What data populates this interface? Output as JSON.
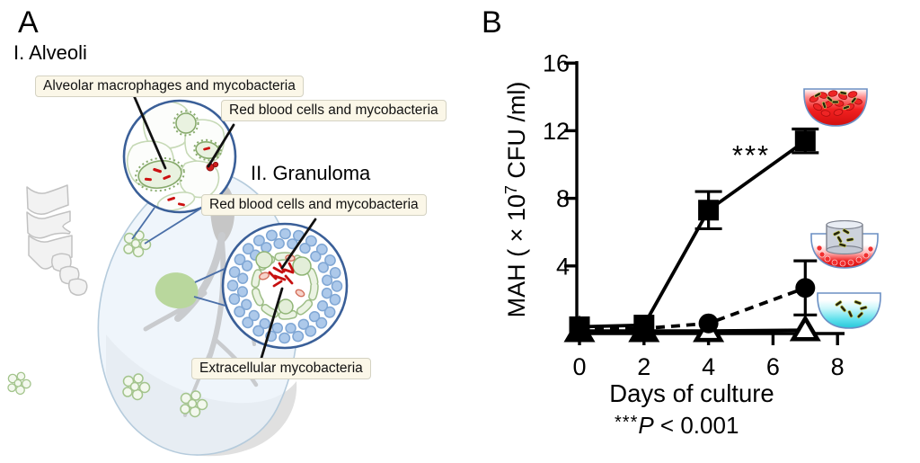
{
  "panel_a": {
    "label": "A",
    "alveoli_title": "I. Alveoli",
    "granuloma_title": "II. Granuloma",
    "callouts": {
      "alveolar_macrophages": "Alveolar macrophages and mycobacteria",
      "rbc_alveoli": "Red blood cells and mycobacteria",
      "rbc_granuloma": "Red blood cells and mycobacteria",
      "extracellular": "Extracellular mycobacteria"
    }
  },
  "panel_b": {
    "label": "B",
    "footnote": {
      "stars": "***",
      "p": "P",
      "rest": " < 0.001"
    }
  },
  "chart_data": {
    "type": "line",
    "x": [
      0,
      2,
      4,
      7
    ],
    "xticks": [
      0,
      2,
      4,
      6,
      8
    ],
    "yticks": [
      4,
      8,
      12,
      16
    ],
    "xlim": [
      0,
      8.2
    ],
    "ylim": [
      0,
      16
    ],
    "xlabel": "Days of culture",
    "ylabel": "MAH ( × 10⁷ CFU /ml)",
    "ylabel_parts": {
      "prefix": "MAH ( × 10",
      "sup": "7",
      "suffix": " CFU /ml)"
    },
    "grid": false,
    "legend_position": "icon pictograms right of curves",
    "series": [
      {
        "name": "squares — red blood cells + mycobacteria co-culture dish",
        "marker": "square",
        "line": "solid",
        "values": [
          0.4,
          0.5,
          7.3,
          11.4
        ],
        "errors": [
          0,
          0,
          1.1,
          0.7
        ],
        "marker_fill": [
          "black",
          "black",
          "black",
          "black"
        ],
        "icon": "dish-red-blood-cells-and-mycobacteria"
      },
      {
        "name": "circles — transwell-insert separated co-culture dish",
        "marker": "circle",
        "line": "dashed",
        "values": [
          0.25,
          0.3,
          0.6,
          2.7
        ],
        "errors": [
          0,
          0,
          0,
          1.6
        ],
        "marker_fill": [
          "black",
          "black",
          "black",
          "black"
        ],
        "icon": "dish-transwell-insert-mycobacteria"
      },
      {
        "name": "triangles — medium only dish",
        "marker": "triangle",
        "line": "solid",
        "values": [
          0.15,
          0.15,
          0.15,
          0.2
        ],
        "errors": [
          0,
          0,
          0,
          0
        ],
        "marker_fill": [
          "black",
          "black",
          "white",
          "white"
        ],
        "icon": "dish-medium-only-mycobacteria"
      }
    ],
    "annotations": {
      "significance": "***",
      "footnote": "***P < 0.001"
    }
  },
  "colors": {
    "axis": "#000000",
    "inset_circle_stroke": "#3a5f98",
    "callout_box_bg": "#fbf7e8",
    "callout_box_border": "#d4d2c2",
    "lung_fill": "#eaf2f9",
    "lung_stroke": "#b5cbdc",
    "lesion_green": "#b9d79d",
    "lymphocyte_blue": "#adc9ea",
    "rbc_red": "#e82222",
    "medium_cyan": "#42d6e6",
    "bone_grey": "#f2f2f2"
  }
}
